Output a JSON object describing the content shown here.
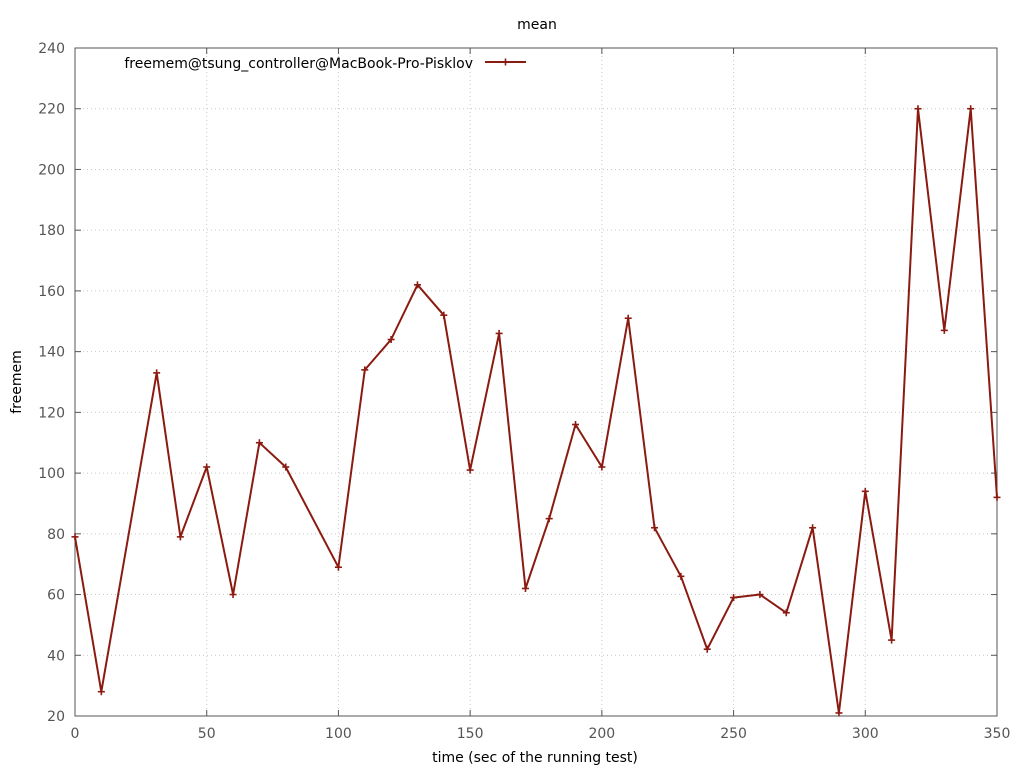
{
  "chart_data": {
    "type": "line",
    "title": "mean",
    "xlabel": "time (sec of the running test)",
    "ylabel": "freemem",
    "xlim": [
      0,
      350
    ],
    "ylim": [
      20,
      240
    ],
    "x_ticks": [
      0,
      50,
      100,
      150,
      200,
      250,
      300,
      350
    ],
    "y_ticks": [
      20,
      40,
      60,
      80,
      100,
      120,
      140,
      160,
      180,
      200,
      220,
      240
    ],
    "grid": true,
    "legend_position": "top-left",
    "series": [
      {
        "name": "freemem@tsung_controller@MacBook-Pro-Pisklov",
        "color": "#8b1a10",
        "marker": "plus",
        "x": [
          0,
          10,
          31,
          40,
          50,
          60,
          70,
          80,
          100,
          110,
          120,
          130,
          140,
          150,
          161,
          171,
          180,
          190,
          200,
          210,
          220,
          230,
          240,
          250,
          260,
          270,
          280,
          290,
          300,
          310,
          320,
          330,
          340,
          350
        ],
        "y": [
          79,
          28,
          133,
          79,
          102,
          60,
          110,
          102,
          69,
          134,
          144,
          162,
          152,
          101,
          146,
          62,
          85,
          116,
          102,
          151,
          82,
          66,
          42,
          59,
          60,
          54,
          82,
          21,
          94,
          45,
          220,
          147,
          220,
          92
        ]
      }
    ]
  }
}
